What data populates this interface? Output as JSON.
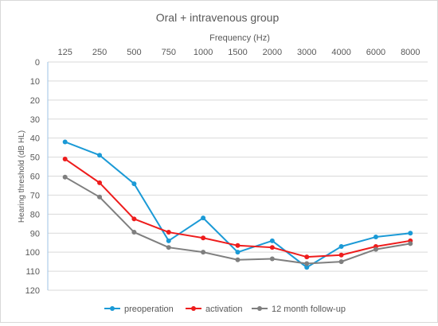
{
  "chart_data": {
    "type": "line",
    "title": "Oral + intravenous group",
    "xlabel": "Frequency (Hz)",
    "ylabel": "Hearing threshold (dB HL)",
    "categories": [
      "125",
      "250",
      "500",
      "750",
      "1000",
      "1500",
      "2000",
      "3000",
      "4000",
      "6000",
      "8000"
    ],
    "ylim": [
      0,
      120
    ],
    "y_ticks": [
      0,
      10,
      20,
      30,
      40,
      50,
      60,
      70,
      80,
      90,
      100,
      110,
      120
    ],
    "y_inverted": true,
    "x_axis_position": "top",
    "grid": true,
    "legend": "bottom",
    "series": [
      {
        "name": "preoperation",
        "color": "#1b9ad6",
        "values": [
          42,
          49,
          64,
          94,
          82,
          100,
          94,
          108,
          97,
          92,
          90
        ]
      },
      {
        "name": "activation",
        "color": "#ee1c1c",
        "values": [
          51,
          63.5,
          82.5,
          89.5,
          92.5,
          96.5,
          97.5,
          102.5,
          101.5,
          97,
          94
        ]
      },
      {
        "name": "12 month follow-up",
        "color": "#7f7f7f",
        "values": [
          60.5,
          71,
          89.5,
          97.5,
          100,
          104,
          103.5,
          106,
          105,
          98.5,
          95.5
        ]
      }
    ]
  }
}
